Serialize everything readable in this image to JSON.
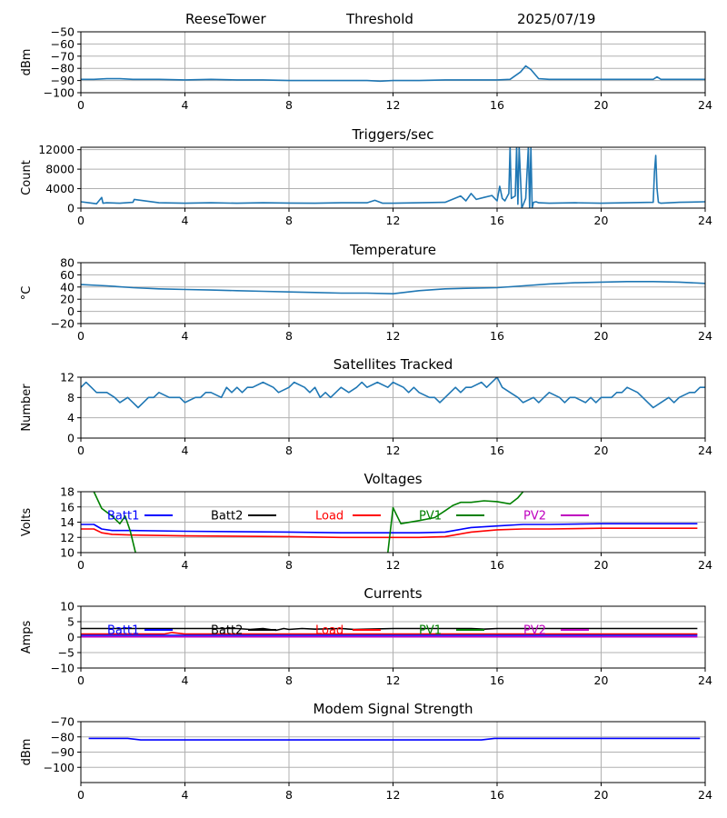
{
  "header": {
    "station": "ReeseTower",
    "mode": "Threshold",
    "date": "2025/07/19"
  },
  "colors": {
    "default_series": "#1f77b4",
    "grid": "#b0b0b0",
    "batt1": "#0000ff",
    "batt2": "#000000",
    "load": "#ff0000",
    "pv1": "#008000",
    "pv2": "#bf00bf"
  },
  "chart_data": [
    {
      "type": "line",
      "title": "",
      "xlabel": "",
      "ylabel": "dBm",
      "xlim": [
        0,
        24
      ],
      "ylim": [
        -100,
        -50
      ],
      "grid": true,
      "xticks": [
        0,
        4,
        8,
        12,
        16,
        20,
        24
      ],
      "yticks": [
        -100,
        -90,
        -80,
        -70,
        -60,
        -50
      ],
      "series": [
        {
          "color": "#1f77b4",
          "x": [
            0,
            0.5,
            1,
            1.5,
            2,
            3,
            4,
            5,
            6,
            7,
            8,
            9,
            10,
            11,
            11.5,
            12,
            13,
            14,
            15,
            16,
            16.5,
            16.9,
            17.1,
            17.3,
            17.6,
            18,
            19,
            20,
            21,
            22,
            22.15,
            22.3,
            23,
            24
          ],
          "y": [
            -89,
            -89,
            -88.5,
            -88.5,
            -89,
            -89,
            -89.5,
            -89,
            -89.5,
            -89.5,
            -90,
            -90,
            -90,
            -90,
            -90.5,
            -90,
            -90,
            -89.5,
            -89.5,
            -89.5,
            -89,
            -83,
            -78,
            -81,
            -88.5,
            -89,
            -89,
            -89,
            -89,
            -89,
            -87,
            -89,
            -89,
            -89
          ]
        }
      ]
    },
    {
      "type": "line",
      "title": "Triggers/sec",
      "xlabel": "",
      "ylabel": "Count",
      "xlim": [
        0,
        24
      ],
      "ylim": [
        0,
        12500
      ],
      "grid": true,
      "xticks": [
        0,
        4,
        8,
        12,
        16,
        20,
        24
      ],
      "yticks": [
        0,
        4000,
        8000,
        12000
      ],
      "series": [
        {
          "color": "#1f77b4",
          "x": [
            0,
            0.3,
            0.6,
            0.8,
            0.85,
            1,
            1.5,
            2,
            2.05,
            3,
            4,
            5,
            6,
            7,
            8,
            9,
            10,
            11,
            11.3,
            11.6,
            12,
            13,
            14,
            14.6,
            14.8,
            15,
            15.2,
            15.5,
            15.8,
            16,
            16.1,
            16.2,
            16.3,
            16.45,
            16.5,
            16.55,
            16.7,
            16.75,
            16.8,
            16.85,
            16.95,
            17.1,
            17.2,
            17.25,
            17.3,
            17.35,
            17.4,
            17.5,
            17.6,
            18,
            19,
            20,
            21,
            22,
            22.05,
            22.1,
            22.15,
            22.2,
            22.3,
            23,
            24
          ],
          "y": [
            1300,
            1100,
            900,
            2200,
            1000,
            1100,
            1000,
            1200,
            1800,
            1100,
            1000,
            1100,
            1000,
            1100,
            1050,
            1000,
            1100,
            1100,
            1600,
            1000,
            1000,
            1100,
            1200,
            2500,
            1500,
            3000,
            1800,
            2200,
            2600,
            1500,
            4500,
            2000,
            1500,
            3000,
            12500,
            2000,
            2500,
            12500,
            800,
            12500,
            0,
            2000,
            12500,
            0,
            12500,
            0,
            1200,
            1300,
            1100,
            1000,
            1100,
            1000,
            1100,
            1200,
            7500,
            10800,
            4000,
            1200,
            1000,
            1200,
            1300
          ]
        }
      ]
    },
    {
      "type": "line",
      "title": "Temperature",
      "xlabel": "",
      "ylabel": "°C",
      "xlim": [
        0,
        24
      ],
      "ylim": [
        -20,
        80
      ],
      "grid": true,
      "xticks": [
        0,
        4,
        8,
        12,
        16,
        20,
        24
      ],
      "yticks": [
        -20,
        0,
        20,
        40,
        60,
        80
      ],
      "series": [
        {
          "color": "#1f77b4",
          "x": [
            0,
            1,
            2,
            3,
            4,
            5,
            6,
            7,
            8,
            9,
            10,
            11,
            12,
            13,
            14,
            15,
            16,
            17,
            18,
            19,
            20,
            21,
            22,
            23,
            24
          ],
          "y": [
            44,
            42,
            39,
            37,
            36,
            35,
            34,
            33,
            32,
            31,
            30,
            30,
            29,
            34,
            37,
            38,
            39,
            42,
            45,
            47,
            48,
            49,
            49,
            48,
            46
          ]
        }
      ]
    },
    {
      "type": "line",
      "title": "Satellites Tracked",
      "xlabel": "",
      "ylabel": "Number",
      "xlim": [
        0,
        24
      ],
      "ylim": [
        0,
        12
      ],
      "grid": true,
      "xticks": [
        0,
        4,
        8,
        12,
        16,
        20,
        24
      ],
      "yticks": [
        0,
        4,
        8,
        12
      ],
      "series": [
        {
          "color": "#1f77b4",
          "x": [
            0,
            0.2,
            0.4,
            0.6,
            1,
            1.3,
            1.5,
            1.8,
            2,
            2.2,
            2.4,
            2.6,
            2.8,
            3,
            3.4,
            3.6,
            3.8,
            4,
            4.4,
            4.6,
            4.8,
            5,
            5.4,
            5.6,
            5.8,
            6,
            6.2,
            6.4,
            6.6,
            7,
            7.4,
            7.6,
            8,
            8.2,
            8.6,
            8.8,
            9,
            9.2,
            9.4,
            9.6,
            10,
            10.3,
            10.6,
            10.8,
            11,
            11.4,
            11.8,
            12,
            12.4,
            12.6,
            12.8,
            13,
            13.4,
            13.6,
            13.8,
            14,
            14.4,
            14.6,
            14.8,
            15,
            15.4,
            15.6,
            15.8,
            16,
            16.2,
            16.5,
            16.8,
            17,
            17.4,
            17.6,
            17.8,
            18,
            18.4,
            18.6,
            18.8,
            19,
            19.4,
            19.6,
            19.8,
            20,
            20.4,
            20.6,
            20.8,
            21,
            21.4,
            21.6,
            21.8,
            22,
            22.3,
            22.6,
            22.8,
            23,
            23.4,
            23.6,
            23.8,
            24
          ],
          "y": [
            10,
            11,
            10,
            9,
            9,
            8,
            7,
            8,
            7,
            6,
            7,
            8,
            8,
            9,
            8,
            8,
            8,
            7,
            8,
            8,
            9,
            9,
            8,
            10,
            9,
            10,
            9,
            10,
            10,
            11,
            10,
            9,
            10,
            11,
            10,
            9,
            10,
            8,
            9,
            8,
            10,
            9,
            10,
            11,
            10,
            11,
            10,
            11,
            10,
            9,
            10,
            9,
            8,
            8,
            7,
            8,
            10,
            9,
            10,
            10,
            11,
            10,
            11,
            12,
            10,
            9,
            8,
            7,
            8,
            7,
            8,
            9,
            8,
            7,
            8,
            8,
            7,
            8,
            7,
            8,
            8,
            9,
            9,
            10,
            9,
            8,
            7,
            6,
            7,
            8,
            7,
            8,
            9,
            9,
            10,
            10
          ]
        }
      ]
    },
    {
      "type": "line",
      "title": "Voltages",
      "xlabel": "",
      "ylabel": "Volts",
      "xlim": [
        0,
        24
      ],
      "ylim": [
        10,
        18
      ],
      "grid": true,
      "xticks": [
        0,
        4,
        8,
        12,
        16,
        20,
        24
      ],
      "yticks": [
        10,
        12,
        14,
        16,
        18
      ],
      "legend": [
        "Batt1",
        "Batt2",
        "Load",
        "PV1",
        "PV2"
      ],
      "series": [
        {
          "name": "Batt1",
          "color": "#0000ff",
          "x": [
            0,
            0.5,
            0.8,
            1.2,
            2,
            4,
            8,
            10,
            12,
            13,
            14,
            14.5,
            15,
            16,
            17,
            18,
            20,
            22,
            23.7
          ],
          "y": [
            13.7,
            13.7,
            13.1,
            12.9,
            12.9,
            12.8,
            12.7,
            12.6,
            12.6,
            12.6,
            12.7,
            13.0,
            13.3,
            13.5,
            13.7,
            13.7,
            13.8,
            13.8,
            13.8
          ]
        },
        {
          "name": "Load",
          "color": "#ff0000",
          "x": [
            0,
            0.5,
            0.8,
            1.2,
            2,
            4,
            8,
            10,
            11,
            12,
            13,
            14,
            14.5,
            15,
            16,
            17,
            18,
            20,
            22,
            23.7
          ],
          "y": [
            13.1,
            13.1,
            12.6,
            12.4,
            12.3,
            12.2,
            12.1,
            12.0,
            12.0,
            12.0,
            12.0,
            12.1,
            12.4,
            12.7,
            13.0,
            13.1,
            13.1,
            13.2,
            13.2,
            13.2
          ]
        },
        {
          "name": "PV1",
          "color": "#008000",
          "x": [
            0.5,
            0.8,
            1.2,
            1.5,
            1.7,
            1.9,
            2.1,
            2.2
          ],
          "y": [
            18,
            15.8,
            14.8,
            13.8,
            14.8,
            12.8,
            10,
            9.5
          ]
        },
        {
          "name": "PV1",
          "color": "#008000",
          "x": [
            11.8,
            12,
            12.3,
            13,
            13.6,
            14,
            14.3,
            14.6,
            15,
            15.5,
            16,
            16.5,
            16.8,
            17
          ],
          "y": [
            10,
            15.9,
            13.8,
            14.2,
            14.6,
            15.5,
            16.2,
            16.6,
            16.6,
            16.8,
            16.7,
            16.4,
            17.2,
            18
          ]
        }
      ]
    },
    {
      "type": "line",
      "title": "Currents",
      "xlabel": "",
      "ylabel": "Amps",
      "xlim": [
        0,
        24
      ],
      "ylim": [
        -10,
        10
      ],
      "grid": true,
      "xticks": [
        0,
        4,
        8,
        12,
        16,
        20,
        24
      ],
      "yticks": [
        -10,
        -5,
        0,
        5,
        10
      ],
      "legend": [
        "Batt1",
        "Batt2",
        "Load",
        "PV1",
        "PV2"
      ],
      "series": [
        {
          "name": "Batt2",
          "color": "#000000",
          "x": [
            0,
            2,
            4,
            6,
            6.5,
            7,
            7.5,
            7.8,
            8,
            8.5,
            9,
            10,
            10.5,
            11,
            12,
            13,
            14,
            15,
            15.5,
            16,
            18,
            20,
            22,
            23.7
          ],
          "y": [
            2.8,
            2.8,
            2.8,
            2.8,
            2.5,
            2.8,
            2.2,
            2.8,
            2.5,
            2.8,
            2.6,
            2.8,
            2.5,
            2.6,
            2.8,
            2.8,
            2.8,
            2.8,
            2.6,
            2.8,
            2.8,
            2.8,
            2.8,
            2.8
          ]
        },
        {
          "name": "Load",
          "color": "#ff0000",
          "x": [
            0,
            2,
            3.2,
            3.5,
            4,
            8,
            12,
            16,
            20,
            23.7
          ],
          "y": [
            1.0,
            1.0,
            1.0,
            1.5,
            1.0,
            1.0,
            1.0,
            1.0,
            1.0,
            1.0
          ]
        },
        {
          "name": "PV2",
          "color": "#bf00bf",
          "x": [
            0,
            23.7
          ],
          "y": [
            0.1,
            0.1
          ]
        },
        {
          "name": "Batt1",
          "color": "#0000ff",
          "x": [
            0,
            23.7
          ],
          "y": [
            0.6,
            0.6
          ]
        }
      ]
    },
    {
      "type": "line",
      "title": "Modem Signal Strength",
      "xlabel": "",
      "ylabel": "dBm",
      "xlim": [
        0,
        24
      ],
      "ylim": [
        -110,
        -70
      ],
      "grid": true,
      "xticks": [
        0,
        4,
        8,
        12,
        16,
        20,
        24
      ],
      "yticks": [
        -100,
        -90,
        -80,
        -70
      ],
      "series": [
        {
          "color": "#0000ff",
          "x": [
            0.3,
            1.8,
            2.3,
            15.4,
            15.9,
            23.8
          ],
          "y": [
            -81,
            -81,
            -82,
            -82,
            -81,
            -81
          ]
        }
      ]
    }
  ]
}
